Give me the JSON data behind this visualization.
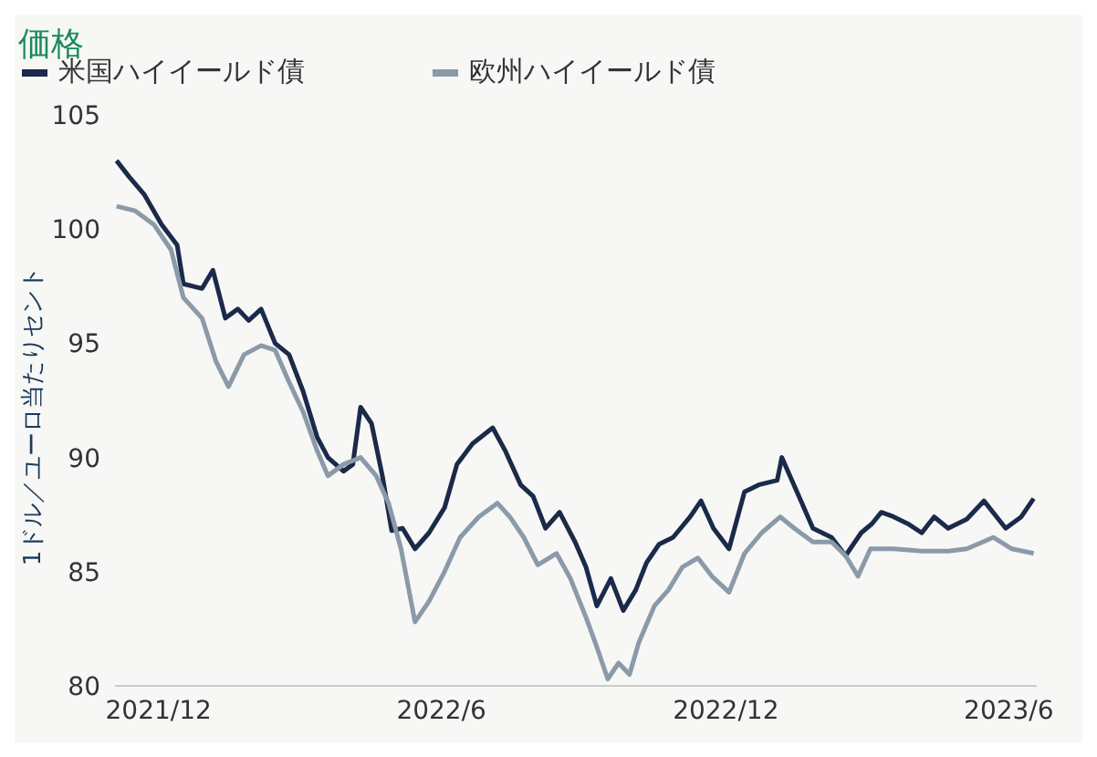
{
  "chart_data": {
    "type": "line",
    "title": "価格",
    "ylabel": "1ドル／ユーロ当たりセント",
    "legend": "top left",
    "grid": false,
    "marker": "none",
    "line_style": "solid",
    "xlim": [
      "2021-11-03",
      "2023-06-19"
    ],
    "xticks": [
      {
        "value": "2021-12-01",
        "label": "2021/12"
      },
      {
        "value": "2022-06-01",
        "label": "2022/6"
      },
      {
        "value": "2022-12-01",
        "label": "2022/12"
      },
      {
        "value": "2023-06-01",
        "label": "2023/6"
      }
    ],
    "ylim": [
      80,
      105
    ],
    "yticks": [
      80,
      85,
      90,
      95,
      100,
      105
    ],
    "series": [
      {
        "name": "米国ハイイールド債",
        "color": "#1b2a4a",
        "x": [
          "2021-11-04",
          "2021-11-12",
          "2021-11-22",
          "2021-12-03",
          "2021-12-13",
          "2021-12-17",
          "2021-12-29",
          "2022-01-05",
          "2022-01-13",
          "2022-01-21",
          "2022-01-28",
          "2022-02-05",
          "2022-02-14",
          "2022-02-23",
          "2022-03-04",
          "2022-03-13",
          "2022-03-20",
          "2022-03-30",
          "2022-04-05",
          "2022-04-10",
          "2022-04-17",
          "2022-04-24",
          "2022-04-30",
          "2022-05-07",
          "2022-05-15",
          "2022-05-24",
          "2022-06-03",
          "2022-06-11",
          "2022-06-21",
          "2022-07-04",
          "2022-07-12",
          "2022-07-22",
          "2022-07-30",
          "2022-08-07",
          "2022-08-16",
          "2022-08-26",
          "2022-09-02",
          "2022-09-09",
          "2022-09-18",
          "2022-09-26",
          "2022-10-04",
          "2022-10-11",
          "2022-10-19",
          "2022-10-28",
          "2022-11-08",
          "2022-11-15",
          "2022-11-23",
          "2022-12-03",
          "2022-12-13",
          "2022-12-22",
          "2023-01-03",
          "2023-01-06",
          "2023-01-17",
          "2023-01-26",
          "2023-02-07",
          "2023-02-16",
          "2023-02-26",
          "2023-03-05",
          "2023-03-11",
          "2023-03-19",
          "2023-03-28",
          "2023-04-06",
          "2023-04-14",
          "2023-04-23",
          "2023-05-05",
          "2023-05-16",
          "2023-05-30",
          "2023-06-09",
          "2023-06-17"
        ],
        "values": [
          103,
          102.3,
          101.5,
          100.2,
          99.3,
          97.6,
          97.4,
          98.2,
          96.1,
          96.5,
          96,
          96.5,
          95,
          94.5,
          92.9,
          90.9,
          90,
          89.4,
          89.7,
          92.2,
          91.5,
          89.2,
          86.8,
          86.9,
          86,
          86.7,
          87.8,
          89.7,
          90.6,
          91.3,
          90.3,
          88.8,
          88.3,
          86.9,
          87.6,
          86.3,
          85.2,
          83.5,
          84.7,
          83.3,
          84.2,
          85.4,
          86.2,
          86.5,
          87.4,
          88.1,
          86.9,
          86,
          88.5,
          88.8,
          89,
          90,
          88.3,
          86.9,
          86.5,
          85.7,
          86.7,
          87.1,
          87.6,
          87.4,
          87.1,
          86.7,
          87.4,
          86.9,
          87.3,
          88.1,
          86.9,
          87.4,
          88.2
        ]
      },
      {
        "name": "欧州ハイイールド債",
        "color": "#8a9aa8",
        "x": [
          "2021-11-04",
          "2021-11-16",
          "2021-11-28",
          "2021-12-09",
          "2021-12-17",
          "2021-12-29",
          "2022-01-07",
          "2022-01-15",
          "2022-01-25",
          "2022-02-05",
          "2022-02-14",
          "2022-02-23",
          "2022-03-04",
          "2022-03-13",
          "2022-03-20",
          "2022-03-30",
          "2022-04-10",
          "2022-04-20",
          "2022-04-28",
          "2022-05-06",
          "2022-05-15",
          "2022-05-24",
          "2022-06-03",
          "2022-06-13",
          "2022-06-25",
          "2022-07-07",
          "2022-07-15",
          "2022-07-24",
          "2022-08-02",
          "2022-08-14",
          "2022-08-23",
          "2022-09-02",
          "2022-09-09",
          "2022-09-16",
          "2022-09-23",
          "2022-09-30",
          "2022-10-06",
          "2022-10-16",
          "2022-10-25",
          "2022-11-03",
          "2022-11-13",
          "2022-11-22",
          "2022-12-03",
          "2022-12-13",
          "2022-12-24",
          "2023-01-05",
          "2023-01-14",
          "2023-01-26",
          "2023-02-07",
          "2023-02-16",
          "2023-02-24",
          "2023-03-04",
          "2023-03-19",
          "2023-04-06",
          "2023-04-23",
          "2023-05-05",
          "2023-05-22",
          "2023-06-03",
          "2023-06-17"
        ],
        "values": [
          101,
          100.8,
          100.2,
          99.1,
          97,
          96.1,
          94.2,
          93.1,
          94.5,
          94.9,
          94.7,
          93.3,
          92,
          90.3,
          89.2,
          89.7,
          90,
          89.2,
          88,
          86,
          82.8,
          83.7,
          85,
          86.5,
          87.4,
          88,
          87.4,
          86.5,
          85.3,
          85.8,
          84.7,
          83,
          81.7,
          80.3,
          81,
          80.5,
          81.9,
          83.5,
          84.2,
          85.2,
          85.6,
          84.8,
          84.1,
          85.8,
          86.7,
          87.4,
          86.9,
          86.3,
          86.3,
          85.7,
          84.8,
          86,
          86,
          85.9,
          85.9,
          86,
          86.5,
          86,
          85.8
        ]
      }
    ]
  }
}
